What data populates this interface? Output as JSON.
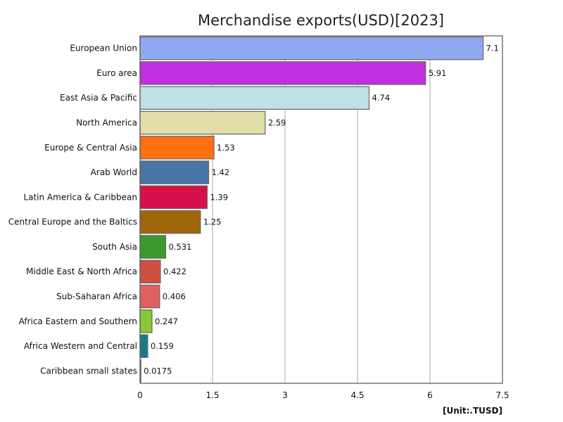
{
  "chart_data": {
    "type": "bar",
    "orientation": "horizontal",
    "title": "Merchandise exports(USD)[2023]",
    "unit_label": "[Unit:.TUSD]",
    "xlim": [
      0,
      7.5
    ],
    "xticks": [
      "0",
      "1.5",
      "3",
      "4.5",
      "6",
      "7.5"
    ],
    "grid": true,
    "categories": [
      "European Union",
      "Euro area",
      "East Asia & Pacific",
      "North America",
      "Europe & Central Asia",
      "Arab World",
      "Latin America & Caribbean",
      "Central Europe and the Baltics",
      "South Asia",
      "Middle East & North Africa",
      "Sub-Saharan Africa",
      "Africa Eastern and Southern",
      "Africa Western and Central",
      "Caribbean small states"
    ],
    "values": [
      7.1,
      5.91,
      4.74,
      2.59,
      1.53,
      1.42,
      1.39,
      1.25,
      0.531,
      0.422,
      0.406,
      0.247,
      0.159,
      0.0175
    ],
    "value_labels": [
      "7.1",
      "5.91",
      "4.74",
      "2.59",
      "1.53",
      "1.42",
      "1.39",
      "1.25",
      "0.531",
      "0.422",
      "0.406",
      "0.247",
      "0.159",
      "0.0175"
    ],
    "colors": [
      "#8fa8f0",
      "#c030e0",
      "#c0e0e6",
      "#e2deaa",
      "#ff7010",
      "#4676a4",
      "#d8104a",
      "#a0660a",
      "#3c9a2c",
      "#d05040",
      "#e06060",
      "#88c830",
      "#1a7a88",
      "#b0b0b0"
    ]
  }
}
